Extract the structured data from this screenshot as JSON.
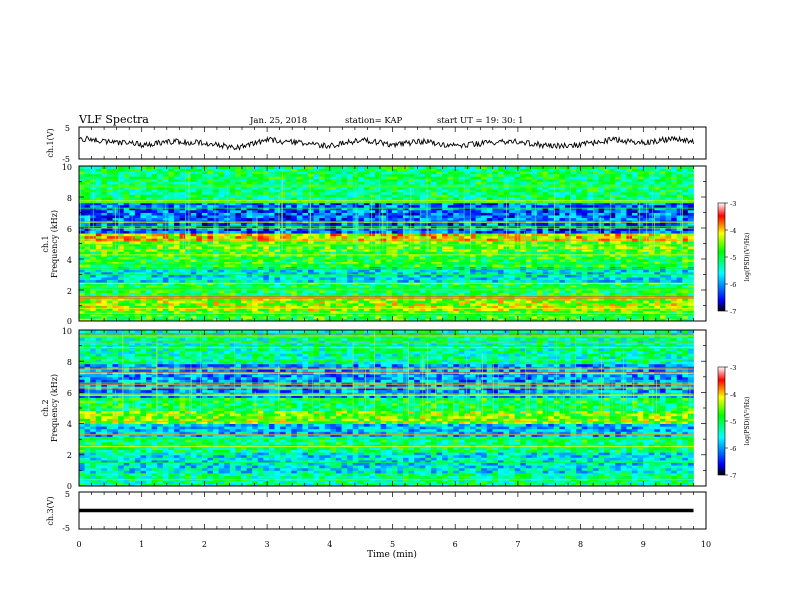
{
  "header": {
    "title": "VLF Spectra",
    "date": "Jan. 25, 2018",
    "station": "station= KAP",
    "start": "start UT =   19: 30: 1"
  },
  "chart_data": [
    {
      "type": "line",
      "panel": "ch1-waveform",
      "ylabel": "ch.1(V)",
      "ylim": [
        -5,
        5
      ],
      "yticks": [
        "5",
        "-5"
      ],
      "xlim": [
        0,
        10
      ],
      "trace_color": "#000000",
      "x_end": 9.8,
      "x": [
        0,
        0.5,
        1,
        1.5,
        2,
        2.5,
        3,
        3.5,
        4,
        4.5,
        5,
        5.5,
        6,
        6.5,
        7,
        7.5,
        8,
        8.5,
        9,
        9.5,
        9.8
      ],
      "y": [
        1.5,
        0.5,
        -0.5,
        0.5,
        0,
        -1.5,
        1,
        0,
        -1,
        1,
        -0.5,
        0.5,
        -1,
        0,
        0.5,
        -1,
        -0.5,
        1,
        0,
        1.5,
        0.5
      ]
    },
    {
      "type": "heatmap",
      "panel": "ch1-spectrogram",
      "ylabel": "ch.1\nFrequency (kHz)",
      "ylim": [
        0,
        10
      ],
      "yticks": [
        "0",
        "2",
        "4",
        "6",
        "8",
        "10"
      ],
      "xlim": [
        0,
        10
      ],
      "x_end": 9.8,
      "colorbar": {
        "label": "log(PSD)(V²/Hz)",
        "range": [
          -7,
          -3
        ],
        "ticks": [
          "-3",
          "-4",
          "-5",
          "-6",
          "-7"
        ],
        "colors": [
          "#000000",
          "#0000ff",
          "#00ffff",
          "#00ff00",
          "#ffff00",
          "#ff0000",
          "#ffffff"
        ]
      },
      "bands": [
        {
          "f": [
            0,
            0.7
          ],
          "level": -4.8
        },
        {
          "f": [
            0.7,
            1.5
          ],
          "level": -4.4
        },
        {
          "f": [
            1.5,
            2.5
          ],
          "level": -5.0
        },
        {
          "f": [
            2.5,
            3.5
          ],
          "level": -5.6
        },
        {
          "f": [
            3.5,
            4.5
          ],
          "level": -4.9
        },
        {
          "f": [
            4.5,
            5.2
          ],
          "level": -4.6
        },
        {
          "f": [
            5.2,
            5.6
          ],
          "level": -4.1
        },
        {
          "f": [
            5.6,
            7.6
          ],
          "level": -6.2
        },
        {
          "f": [
            7.6,
            10
          ],
          "level": -5.1
        }
      ]
    },
    {
      "type": "heatmap",
      "panel": "ch2-spectrogram",
      "ylabel": "ch.2\nFrequency (kHz)",
      "ylim": [
        0,
        10
      ],
      "yticks": [
        "0",
        "2",
        "4",
        "6",
        "8",
        "10"
      ],
      "xlim": [
        0,
        10
      ],
      "x_end": 9.8,
      "colorbar": {
        "label": "log(PSD)(V²/Hz)",
        "range": [
          -7,
          -3
        ],
        "ticks": [
          "-3",
          "-4",
          "-5",
          "-6",
          "-7"
        ],
        "colors": [
          "#000000",
          "#0000ff",
          "#00ffff",
          "#00ff00",
          "#ffff00",
          "#ff0000",
          "#ffffff"
        ]
      },
      "bands": [
        {
          "f": [
            0,
            0.8
          ],
          "level": -5.2
        },
        {
          "f": [
            0.8,
            2.2
          ],
          "level": -5.6
        },
        {
          "f": [
            2.2,
            3.2
          ],
          "level": -5.1
        },
        {
          "f": [
            3.2,
            4.0
          ],
          "level": -5.8
        },
        {
          "f": [
            4.0,
            4.8
          ],
          "level": -4.5
        },
        {
          "f": [
            4.8,
            5.6
          ],
          "level": -5.0
        },
        {
          "f": [
            5.6,
            7.8
          ],
          "level": -6.0
        },
        {
          "f": [
            7.8,
            10
          ],
          "level": -5.3
        }
      ]
    },
    {
      "type": "line",
      "panel": "ch3-waveform",
      "ylabel": "ch.3(V)",
      "ylim": [
        -5,
        5
      ],
      "yticks": [
        "5",
        "-5"
      ],
      "xlim": [
        0,
        10
      ],
      "trace_color": "#000000",
      "x": [
        0,
        9.8
      ],
      "y": [
        0,
        0
      ],
      "xlabel": "Time (min)",
      "xticks": [
        "0",
        "1",
        "2",
        "3",
        "4",
        "5",
        "6",
        "7",
        "8",
        "9",
        "10"
      ]
    }
  ]
}
